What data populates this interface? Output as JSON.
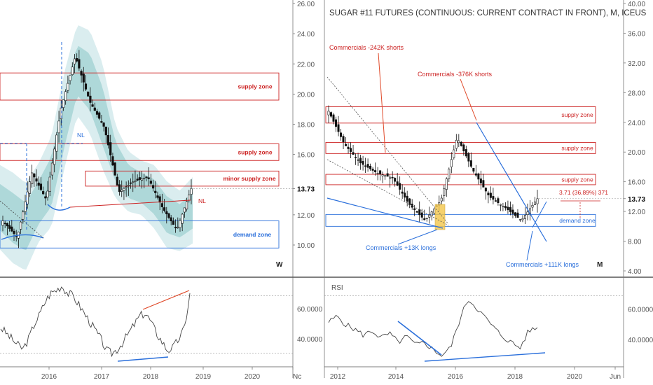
{
  "colors": {
    "supply": "#cc2222",
    "demand": "#2a6fdb",
    "band_outer": "#d8ecee",
    "band_inner": "#9fd0d2",
    "candle": "#111111",
    "rsi": "#444444",
    "trend_red": "#e04a2a",
    "trend_blue": "#2a6fdb",
    "highlight": "#f3c64a"
  },
  "left": {
    "timeframe": "W",
    "current_price": "13.73",
    "y_ticks": [
      "26.00",
      "24.00",
      "22.00",
      "20.00",
      "18.00",
      "16.00",
      "13.73",
      "12.00",
      "10.00"
    ],
    "x_ticks": [
      "2016",
      "2017",
      "2018",
      "2019",
      "2020",
      "Nc"
    ],
    "zones": [
      {
        "label": "supply zone",
        "kind": "supply"
      },
      {
        "label": "supply zone",
        "kind": "supply"
      },
      {
        "label": "minor supply zone",
        "kind": "supply"
      },
      {
        "label": "demand zone",
        "kind": "demand"
      }
    ],
    "nl_labels": [
      "NL",
      "NL"
    ],
    "rsi_ticks": [
      "60.0000",
      "40.0000"
    ]
  },
  "right": {
    "title": "SUGAR #11 FUTURES (CONTINUOUS: CURRENT CONTRACT IN FRONT), M, ICEUS",
    "timeframe": "M",
    "current_price": "13.73",
    "y_ticks": [
      "40.00",
      "36.00",
      "32.00",
      "28.00",
      "24.00",
      "20.00",
      "16.00",
      "13.73",
      "12.00",
      "8.00",
      "4.00"
    ],
    "x_ticks": [
      "2012",
      "2014",
      "2016",
      "2018",
      "2020",
      "Jun"
    ],
    "zones": [
      {
        "label": "supply zone",
        "kind": "supply"
      },
      {
        "label": "supply zone",
        "kind": "supply"
      },
      {
        "label": "supply zone",
        "kind": "supply"
      },
      {
        "label": "demand zone",
        "kind": "demand"
      }
    ],
    "annotations": {
      "comm_242": "Commercials -242K shorts",
      "comm_376": "Commercials -376K shorts",
      "comm_13": "Commercials +13K longs",
      "comm_111": "Commercials +111K longs",
      "measure": "3.71 (36.89%) 371"
    },
    "rsi_label": "RSI",
    "rsi_ticks": [
      "60.0000",
      "40.0000"
    ]
  },
  "chart_data": [
    {
      "type": "line",
      "title": "",
      "timeframe": "W",
      "x": [
        "2015-06",
        "2015-09",
        "2015-12",
        "2016-03",
        "2016-06",
        "2016-09",
        "2016-12",
        "2017-03",
        "2017-06",
        "2017-09",
        "2017-12",
        "2018-03",
        "2018-06",
        "2018-09"
      ],
      "series": [
        {
          "values": [
            11.6,
            10.5,
            14.8,
            13.0,
            19.0,
            22.5,
            19.5,
            17.8,
            13.5,
            14.2,
            14.5,
            12.5,
            11.0,
            13.73
          ]
        }
      ],
      "ylim": [
        8.5,
        26
      ],
      "zones": [
        {
          "label": "supply zone",
          "range": [
            19.6,
            21.4
          ]
        },
        {
          "label": "supply zone",
          "range": [
            15.6,
            16.7
          ]
        },
        {
          "label": "minor supply zone",
          "range": [
            13.9,
            14.9
          ]
        },
        {
          "label": "demand zone",
          "range": [
            9.8,
            11.6
          ]
        }
      ]
    },
    {
      "type": "line",
      "title": "SUGAR #11 FUTURES (CONTINUOUS: CURRENT CONTRACT IN FRONT), M, ICEUS",
      "timeframe": "M",
      "x": [
        "2011-09",
        "2012-06",
        "2013-01",
        "2013-09",
        "2014-06",
        "2015-03",
        "2015-08",
        "2016-01",
        "2016-09",
        "2017-03",
        "2017-09",
        "2018-03",
        "2018-08",
        "2018-09"
      ],
      "series": [
        {
          "values": [
            25.5,
            21.0,
            18.5,
            17.2,
            16.5,
            13.0,
            10.8,
            13.5,
            22.0,
            17.5,
            14.0,
            12.5,
            10.8,
            13.73
          ]
        }
      ],
      "ylim": [
        4,
        40
      ],
      "zones": [
        {
          "label": "supply zone",
          "range": [
            23.9,
            26.1
          ]
        },
        {
          "label": "supply zone",
          "range": [
            19.8,
            21.3
          ]
        },
        {
          "label": "supply zone",
          "range": [
            15.6,
            17.0
          ]
        },
        {
          "label": "demand zone",
          "range": [
            10.0,
            11.6
          ]
        }
      ],
      "annotations": [
        "Commercials -242K shorts",
        "Commercials -376K shorts",
        "Commercials +13K longs",
        "Commercials +111K longs",
        "3.71 (36.89%) 371"
      ]
    }
  ]
}
